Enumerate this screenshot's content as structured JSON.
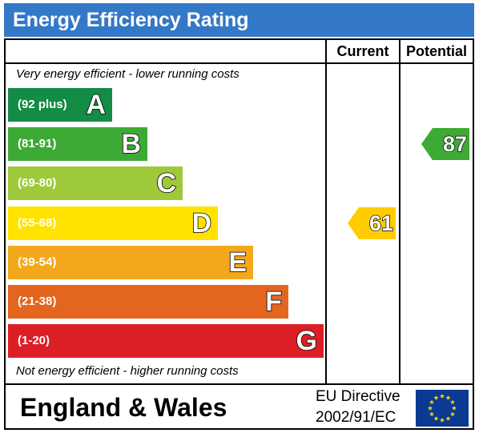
{
  "header": {
    "title": "Energy Efficiency Rating"
  },
  "columns": {
    "current": "Current",
    "potential": "Potential"
  },
  "captions": {
    "top": "Very energy efficient - lower running costs",
    "bottom": "Not energy efficient - higher running costs"
  },
  "chart_data": {
    "type": "bar",
    "categories": [
      "A",
      "B",
      "C",
      "D",
      "E",
      "F",
      "G"
    ],
    "ranges": [
      "(92 plus)",
      "(81-91)",
      "(69-80)",
      "(55-68)",
      "(39-54)",
      "(21-38)",
      "(1-20)"
    ],
    "colors": [
      "#138c45",
      "#3daa35",
      "#9dc93b",
      "#ffe200",
      "#f3a81b",
      "#e4651e",
      "#dc1f26"
    ],
    "current": {
      "value": 61,
      "band": "D",
      "color": "#ffcc00"
    },
    "potential": {
      "value": 87,
      "band": "B",
      "color": "#3daa35"
    }
  },
  "footer": {
    "region": "England & Wales",
    "directive_line1": "EU Directive",
    "directive_line2": "2002/91/EC"
  },
  "flag": {
    "background": "#0c3a93",
    "stars": "#ffdd00"
  }
}
